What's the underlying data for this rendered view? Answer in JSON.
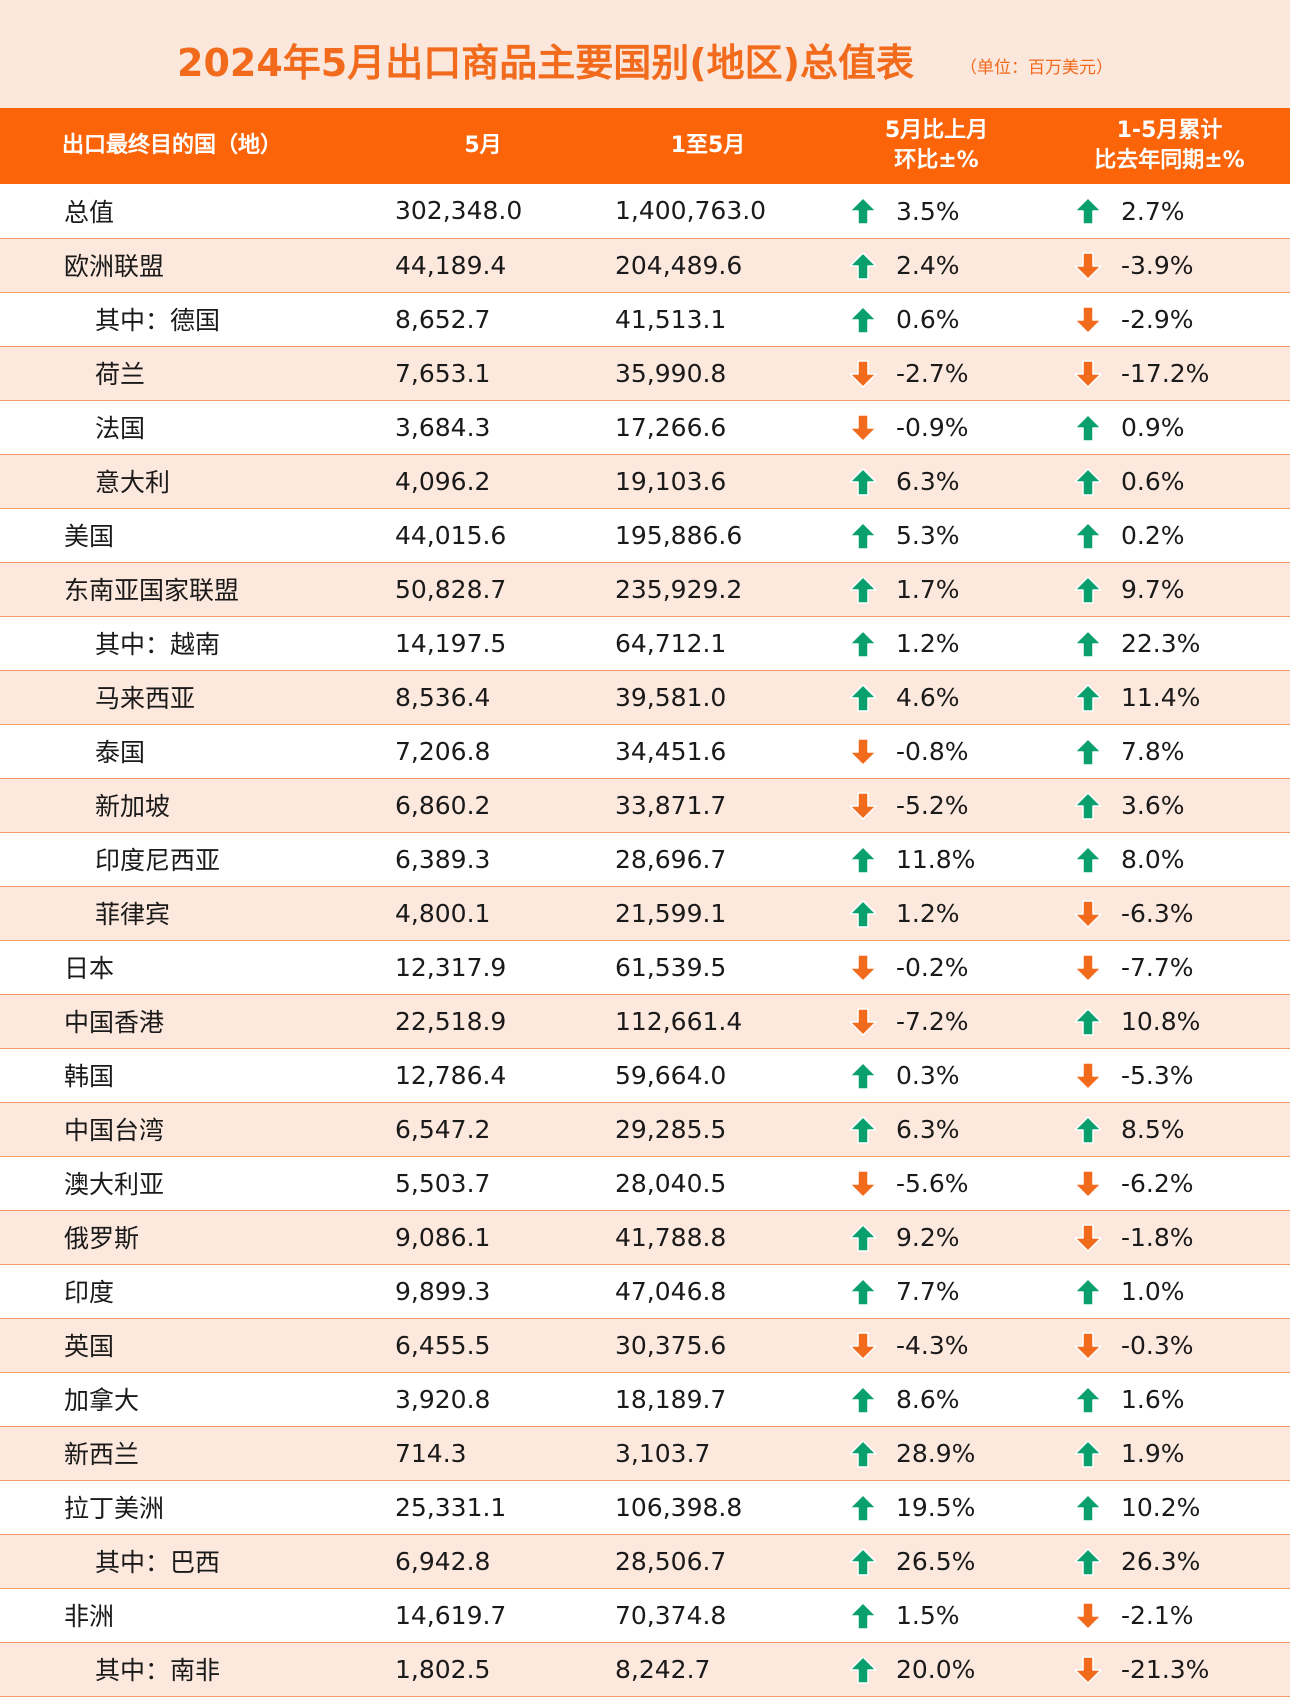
{
  "title": "2024年5月出口商品主要国别(地区)总值表",
  "unit": "（单位：百万美元）",
  "colors": {
    "up": "#0aa06e",
    "down": "#f26a1b",
    "header_bg": "#fb6408"
  },
  "headers": {
    "col1": "出口最终目的国（地）",
    "col2": "5月",
    "col3": "1至5月",
    "col4": "5月比上月\n环比±%",
    "col5": "1-5月累计\n比去年同期±%"
  },
  "rows": [
    {
      "name": "总值",
      "sub": false,
      "may": "302,348.0",
      "jan_may": "1,400,763.0",
      "mom": "3.5%",
      "mom_dir": "up",
      "yoy": "2.7%",
      "yoy_dir": "up"
    },
    {
      "name": "欧洲联盟",
      "sub": false,
      "may": "44,189.4",
      "jan_may": "204,489.6",
      "mom": "2.4%",
      "mom_dir": "up",
      "yoy": "-3.9%",
      "yoy_dir": "down"
    },
    {
      "name": "其中：德国",
      "sub": true,
      "may": "8,652.7",
      "jan_may": "41,513.1",
      "mom": "0.6%",
      "mom_dir": "up",
      "yoy": "-2.9%",
      "yoy_dir": "down"
    },
    {
      "name": "荷兰",
      "sub": true,
      "may": "7,653.1",
      "jan_may": "35,990.8",
      "mom": "-2.7%",
      "mom_dir": "down",
      "yoy": "-17.2%",
      "yoy_dir": "down"
    },
    {
      "name": "法国",
      "sub": true,
      "may": "3,684.3",
      "jan_may": "17,266.6",
      "mom": "-0.9%",
      "mom_dir": "down",
      "yoy": "0.9%",
      "yoy_dir": "up"
    },
    {
      "name": "意大利",
      "sub": true,
      "may": "4,096.2",
      "jan_may": "19,103.6",
      "mom": "6.3%",
      "mom_dir": "up",
      "yoy": "0.6%",
      "yoy_dir": "up"
    },
    {
      "name": "美国",
      "sub": false,
      "may": "44,015.6",
      "jan_may": "195,886.6",
      "mom": "5.3%",
      "mom_dir": "up",
      "yoy": "0.2%",
      "yoy_dir": "up"
    },
    {
      "name": "东南亚国家联盟",
      "sub": false,
      "may": "50,828.7",
      "jan_may": "235,929.2",
      "mom": "1.7%",
      "mom_dir": "up",
      "yoy": "9.7%",
      "yoy_dir": "up"
    },
    {
      "name": "其中：越南",
      "sub": true,
      "may": "14,197.5",
      "jan_may": "64,712.1",
      "mom": "1.2%",
      "mom_dir": "up",
      "yoy": "22.3%",
      "yoy_dir": "up"
    },
    {
      "name": "马来西亚",
      "sub": true,
      "may": "8,536.4",
      "jan_may": "39,581.0",
      "mom": "4.6%",
      "mom_dir": "up",
      "yoy": "11.4%",
      "yoy_dir": "up"
    },
    {
      "name": "泰国",
      "sub": true,
      "may": "7,206.8",
      "jan_may": "34,451.6",
      "mom": "-0.8%",
      "mom_dir": "down",
      "yoy": "7.8%",
      "yoy_dir": "up"
    },
    {
      "name": "新加坡",
      "sub": true,
      "may": "6,860.2",
      "jan_may": "33,871.7",
      "mom": "-5.2%",
      "mom_dir": "down",
      "yoy": "3.6%",
      "yoy_dir": "up"
    },
    {
      "name": "印度尼西亚",
      "sub": true,
      "may": "6,389.3",
      "jan_may": "28,696.7",
      "mom": "11.8%",
      "mom_dir": "up",
      "yoy": "8.0%",
      "yoy_dir": "up"
    },
    {
      "name": "菲律宾",
      "sub": true,
      "may": "4,800.1",
      "jan_may": "21,599.1",
      "mom": "1.2%",
      "mom_dir": "up",
      "yoy": "-6.3%",
      "yoy_dir": "down"
    },
    {
      "name": "日本",
      "sub": false,
      "may": "12,317.9",
      "jan_may": "61,539.5",
      "mom": "-0.2%",
      "mom_dir": "down",
      "yoy": "-7.7%",
      "yoy_dir": "down"
    },
    {
      "name": "中国香港",
      "sub": false,
      "may": "22,518.9",
      "jan_may": "112,661.4",
      "mom": "-7.2%",
      "mom_dir": "down",
      "yoy": "10.8%",
      "yoy_dir": "up"
    },
    {
      "name": "韩国",
      "sub": false,
      "may": "12,786.4",
      "jan_may": "59,664.0",
      "mom": "0.3%",
      "mom_dir": "up",
      "yoy": "-5.3%",
      "yoy_dir": "down"
    },
    {
      "name": "中国台湾",
      "sub": false,
      "may": "6,547.2",
      "jan_may": "29,285.5",
      "mom": "6.3%",
      "mom_dir": "up",
      "yoy": "8.5%",
      "yoy_dir": "up"
    },
    {
      "name": "澳大利亚",
      "sub": false,
      "may": "5,503.7",
      "jan_may": "28,040.5",
      "mom": "-5.6%",
      "mom_dir": "down",
      "yoy": "-6.2%",
      "yoy_dir": "down"
    },
    {
      "name": "俄罗斯",
      "sub": false,
      "may": "9,086.1",
      "jan_may": "41,788.8",
      "mom": "9.2%",
      "mom_dir": "up",
      "yoy": "-1.8%",
      "yoy_dir": "down"
    },
    {
      "name": "印度",
      "sub": false,
      "may": "9,899.3",
      "jan_may": "47,046.8",
      "mom": "7.7%",
      "mom_dir": "up",
      "yoy": "1.0%",
      "yoy_dir": "up"
    },
    {
      "name": "英国",
      "sub": false,
      "may": "6,455.5",
      "jan_may": "30,375.6",
      "mom": "-4.3%",
      "mom_dir": "down",
      "yoy": "-0.3%",
      "yoy_dir": "down"
    },
    {
      "name": "加拿大",
      "sub": false,
      "may": "3,920.8",
      "jan_may": "18,189.7",
      "mom": "8.6%",
      "mom_dir": "up",
      "yoy": "1.6%",
      "yoy_dir": "up"
    },
    {
      "name": "新西兰",
      "sub": false,
      "may": "714.3",
      "jan_may": "3,103.7",
      "mom": "28.9%",
      "mom_dir": "up",
      "yoy": "1.9%",
      "yoy_dir": "up"
    },
    {
      "name": "拉丁美洲",
      "sub": false,
      "may": "25,331.1",
      "jan_may": "106,398.8",
      "mom": "19.5%",
      "mom_dir": "up",
      "yoy": "10.2%",
      "yoy_dir": "up"
    },
    {
      "name": "其中：巴西",
      "sub": true,
      "may": "6,942.8",
      "jan_may": "28,506.7",
      "mom": "26.5%",
      "mom_dir": "up",
      "yoy": "26.3%",
      "yoy_dir": "up"
    },
    {
      "name": "非洲",
      "sub": false,
      "may": "14,619.7",
      "jan_may": "70,374.8",
      "mom": "1.5%",
      "mom_dir": "up",
      "yoy": "-2.1%",
      "yoy_dir": "down"
    },
    {
      "name": "其中：南非",
      "sub": true,
      "may": "1,802.5",
      "jan_may": "8,242.7",
      "mom": "20.0%",
      "mom_dir": "up",
      "yoy": "-21.3%",
      "yoy_dir": "down"
    }
  ]
}
